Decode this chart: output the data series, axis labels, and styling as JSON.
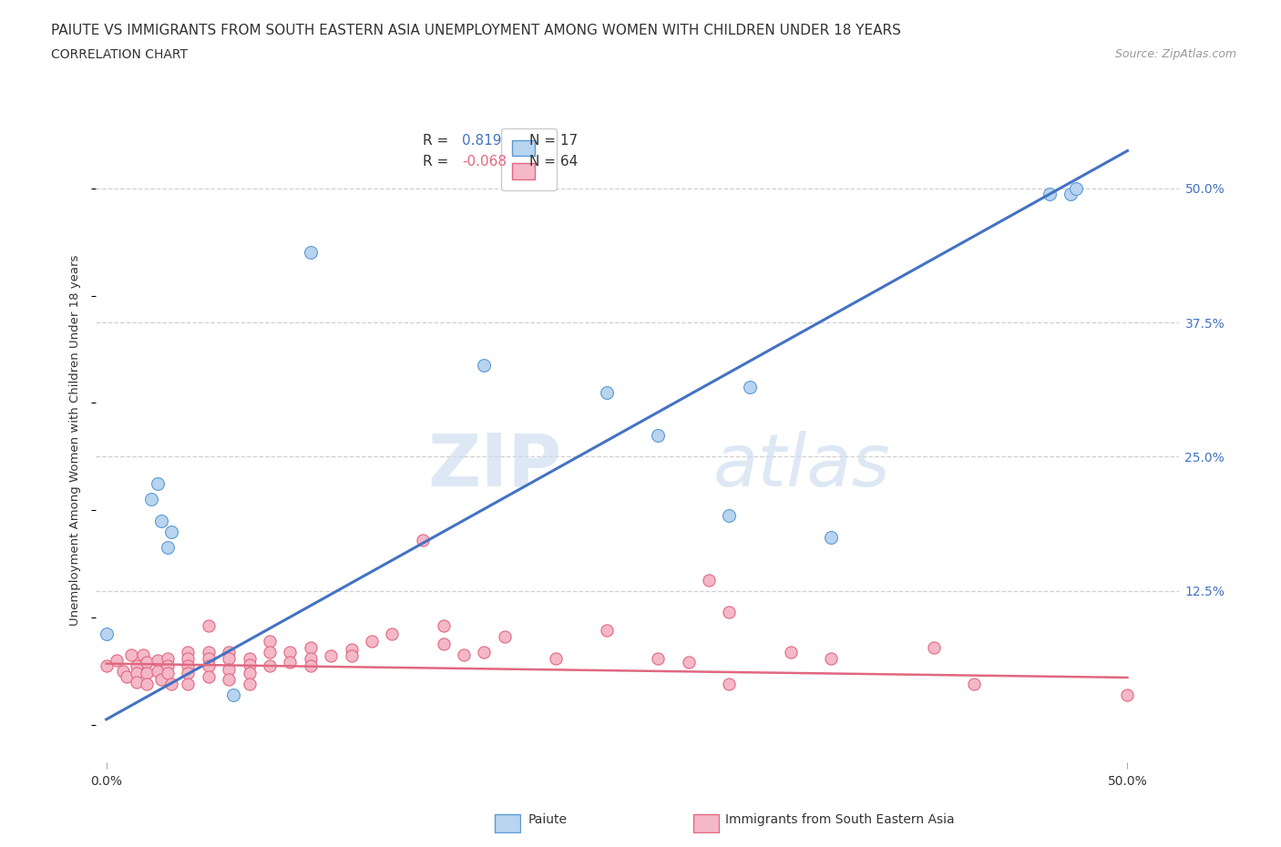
{
  "title": "PAIUTE VS IMMIGRANTS FROM SOUTH EASTERN ASIA UNEMPLOYMENT AMONG WOMEN WITH CHILDREN UNDER 18 YEARS",
  "subtitle": "CORRELATION CHART",
  "source": "Source: ZipAtlas.com",
  "ylabel": "Unemployment Among Women with Children Under 18 years",
  "paiute_fill": "#b8d4ee",
  "paiute_edge": "#5b9bd5",
  "immigrant_fill": "#f4b8c8",
  "immigrant_edge": "#e06880",
  "paiute_line_color": "#4472c4",
  "immigrant_line_color": "#e06880",
  "right_tick_color": "#4472c4",
  "paiute_scatter": [
    [
      0.0,
      0.085
    ],
    [
      0.022,
      0.21
    ],
    [
      0.025,
      0.225
    ],
    [
      0.027,
      0.19
    ],
    [
      0.03,
      0.165
    ],
    [
      0.032,
      0.18
    ],
    [
      0.062,
      0.028
    ],
    [
      0.1,
      0.44
    ],
    [
      0.185,
      0.335
    ],
    [
      0.245,
      0.31
    ],
    [
      0.27,
      0.27
    ],
    [
      0.305,
      0.195
    ],
    [
      0.315,
      0.315
    ],
    [
      0.355,
      0.175
    ],
    [
      0.462,
      0.495
    ],
    [
      0.472,
      0.495
    ],
    [
      0.475,
      0.5
    ]
  ],
  "immigrant_scatter": [
    [
      0.0,
      0.055
    ],
    [
      0.005,
      0.06
    ],
    [
      0.008,
      0.05
    ],
    [
      0.01,
      0.045
    ],
    [
      0.012,
      0.065
    ],
    [
      0.015,
      0.055
    ],
    [
      0.015,
      0.048
    ],
    [
      0.015,
      0.04
    ],
    [
      0.018,
      0.065
    ],
    [
      0.02,
      0.058
    ],
    [
      0.02,
      0.048
    ],
    [
      0.02,
      0.038
    ],
    [
      0.025,
      0.06
    ],
    [
      0.025,
      0.05
    ],
    [
      0.027,
      0.042
    ],
    [
      0.03,
      0.062
    ],
    [
      0.03,
      0.055
    ],
    [
      0.03,
      0.048
    ],
    [
      0.032,
      0.038
    ],
    [
      0.04,
      0.068
    ],
    [
      0.04,
      0.062
    ],
    [
      0.04,
      0.055
    ],
    [
      0.04,
      0.048
    ],
    [
      0.04,
      0.038
    ],
    [
      0.05,
      0.092
    ],
    [
      0.05,
      0.068
    ],
    [
      0.05,
      0.062
    ],
    [
      0.05,
      0.055
    ],
    [
      0.05,
      0.045
    ],
    [
      0.06,
      0.068
    ],
    [
      0.06,
      0.062
    ],
    [
      0.06,
      0.052
    ],
    [
      0.06,
      0.042
    ],
    [
      0.07,
      0.062
    ],
    [
      0.07,
      0.056
    ],
    [
      0.07,
      0.048
    ],
    [
      0.07,
      0.038
    ],
    [
      0.08,
      0.078
    ],
    [
      0.08,
      0.068
    ],
    [
      0.08,
      0.055
    ],
    [
      0.09,
      0.068
    ],
    [
      0.09,
      0.058
    ],
    [
      0.1,
      0.072
    ],
    [
      0.1,
      0.062
    ],
    [
      0.1,
      0.055
    ],
    [
      0.11,
      0.064
    ],
    [
      0.12,
      0.07
    ],
    [
      0.12,
      0.064
    ],
    [
      0.13,
      0.078
    ],
    [
      0.14,
      0.085
    ],
    [
      0.155,
      0.172
    ],
    [
      0.165,
      0.092
    ],
    [
      0.165,
      0.075
    ],
    [
      0.175,
      0.065
    ],
    [
      0.185,
      0.068
    ],
    [
      0.195,
      0.082
    ],
    [
      0.22,
      0.062
    ],
    [
      0.245,
      0.088
    ],
    [
      0.27,
      0.062
    ],
    [
      0.285,
      0.058
    ],
    [
      0.295,
      0.135
    ],
    [
      0.305,
      0.105
    ],
    [
      0.305,
      0.038
    ],
    [
      0.335,
      0.068
    ],
    [
      0.355,
      0.062
    ],
    [
      0.405,
      0.072
    ],
    [
      0.425,
      0.038
    ],
    [
      0.5,
      0.028
    ]
  ],
  "paiute_trend_x": [
    0.0,
    0.5
  ],
  "paiute_trend_y": [
    0.005,
    0.535
  ],
  "immigrant_trend_x": [
    0.0,
    0.5
  ],
  "immigrant_trend_y": [
    0.057,
    0.044
  ],
  "xticks": [
    0.0,
    0.5
  ],
  "xticklabels": [
    "0.0%",
    "50.0%"
  ],
  "yticks_right": [
    0.125,
    0.25,
    0.375,
    0.5
  ],
  "yticklabels_right": [
    "12.5%",
    "25.0%",
    "37.5%",
    "50.0%"
  ],
  "xlim": [
    -0.005,
    0.525
  ],
  "ylim": [
    -0.035,
    0.565
  ],
  "grid_yticks": [
    0.125,
    0.25,
    0.375,
    0.5
  ],
  "grid_color": "#d0d0d0",
  "bg_color": "#ffffff",
  "text_color": "#333333",
  "source_color": "#999999"
}
